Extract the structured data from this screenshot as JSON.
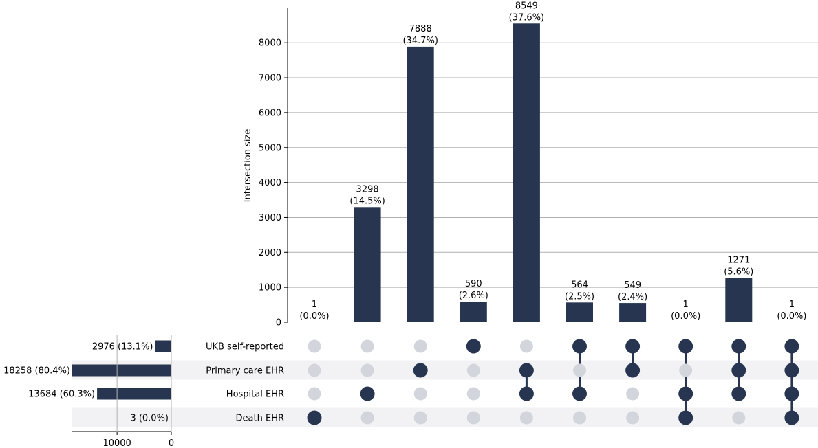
{
  "chart_data": {
    "type": "upset",
    "ylabel": "Intersection size",
    "ylim": [
      0,
      9000
    ],
    "yticks": [
      0,
      1000,
      2000,
      3000,
      4000,
      5000,
      6000,
      7000,
      8000
    ],
    "grid": true,
    "sets": [
      {
        "name": "UKB self-reported",
        "size": 2976,
        "label": "2976 (13.1%)"
      },
      {
        "name": "Primary care EHR",
        "size": 18258,
        "label": "18258 (80.4%)"
      },
      {
        "name": "Hospital EHR",
        "size": 13684,
        "label": "13684 (60.3%)"
      },
      {
        "name": "Death EHR",
        "size": 3,
        "label": "3 (0.0%)"
      }
    ],
    "set_size_axis": {
      "xlim": [
        18258,
        0
      ],
      "ticks": [
        10000,
        0
      ]
    },
    "intersections": [
      {
        "members": [
          0,
          0,
          0,
          1
        ],
        "value": 1,
        "count_label": "1",
        "pct_label": "(0.0%)"
      },
      {
        "members": [
          0,
          0,
          1,
          0
        ],
        "value": 3298,
        "count_label": "3298",
        "pct_label": "(14.5%)"
      },
      {
        "members": [
          0,
          1,
          0,
          0
        ],
        "value": 7888,
        "count_label": "7888",
        "pct_label": "(34.7%)"
      },
      {
        "members": [
          1,
          0,
          0,
          0
        ],
        "value": 590,
        "count_label": "590",
        "pct_label": "(2.6%)"
      },
      {
        "members": [
          0,
          1,
          1,
          0
        ],
        "value": 8549,
        "count_label": "8549",
        "pct_label": "(37.6%)"
      },
      {
        "members": [
          1,
          0,
          1,
          0
        ],
        "value": 564,
        "count_label": "564",
        "pct_label": "(2.5%)"
      },
      {
        "members": [
          1,
          1,
          0,
          0
        ],
        "value": 549,
        "count_label": "549",
        "pct_label": "(2.4%)"
      },
      {
        "members": [
          1,
          0,
          1,
          1
        ],
        "value": 1,
        "count_label": "1",
        "pct_label": "(0.0%)"
      },
      {
        "members": [
          1,
          1,
          1,
          0
        ],
        "value": 1271,
        "count_label": "1271",
        "pct_label": "(5.6%)"
      },
      {
        "members": [
          1,
          1,
          1,
          1
        ],
        "value": 1,
        "count_label": "1",
        "pct_label": "(0.0%)"
      }
    ],
    "colors": {
      "bar": "#273550",
      "dot_active": "#273550",
      "dot_inactive": "#d2d5db",
      "stripe": "#f2f2f4",
      "grid": "#b0b0b0"
    }
  }
}
